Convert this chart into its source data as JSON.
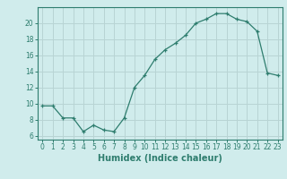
{
  "x": [
    0,
    1,
    2,
    3,
    4,
    5,
    6,
    7,
    8,
    9,
    10,
    11,
    12,
    13,
    14,
    15,
    16,
    17,
    18,
    19,
    20,
    21,
    22,
    23
  ],
  "y": [
    9.7,
    9.7,
    8.2,
    8.2,
    6.5,
    7.3,
    6.7,
    6.5,
    8.2,
    12.0,
    13.5,
    15.5,
    16.7,
    17.5,
    18.5,
    20.0,
    20.5,
    21.2,
    21.2,
    20.5,
    20.2,
    19.0,
    13.8,
    13.5
  ],
  "xlabel": "Humidex (Indice chaleur)",
  "xlim": [
    -0.5,
    23.5
  ],
  "ylim": [
    5.5,
    22
  ],
  "xticks": [
    0,
    1,
    2,
    3,
    4,
    5,
    6,
    7,
    8,
    9,
    10,
    11,
    12,
    13,
    14,
    15,
    16,
    17,
    18,
    19,
    20,
    21,
    22,
    23
  ],
  "yticks": [
    6,
    8,
    10,
    12,
    14,
    16,
    18,
    20
  ],
  "line_color": "#2e7d6e",
  "marker": "+",
  "bg_color": "#d0ecec",
  "grid_color": "#b8d4d4",
  "axis_color": "#2e7d6e",
  "label_color": "#2e7d6e",
  "tick_fontsize": 5.5,
  "xlabel_fontsize": 7.0
}
